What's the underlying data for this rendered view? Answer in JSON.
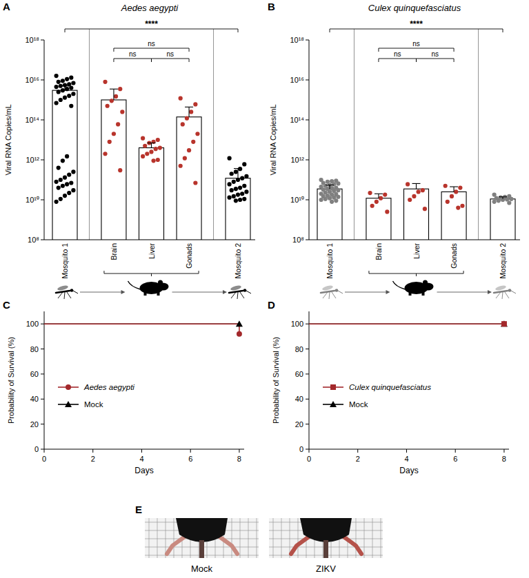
{
  "chart_data": [
    {
      "panel": "A",
      "type": "bar",
      "title": "Aedes aegypti",
      "y_label": "Viral RNA Copies/mL",
      "categories": [
        "Mosquito 1",
        "Brain",
        "Liver",
        "Gonads",
        "Mosquito 2"
      ],
      "values": [
        3000000000000000.0,
        1000000000000000.0,
        4000000000000.0,
        140000000000000.0,
        120000000000.0
      ],
      "errors": [
        2000000000000000.0,
        2500000000000000.0,
        3000000000000.0,
        300000000000000.0,
        250000000000.0
      ],
      "points": [
        [
          1.6e+16,
          1.3e+16,
          1.1e+16,
          9000000000000000.0,
          8000000000000000.0,
          7000000000000000.0,
          6000000000000000.0,
          5500000000000000.0,
          5000000000000000.0,
          4500000000000000.0,
          4000000000000000.0,
          3500000000000000.0,
          3000000000000000.0,
          2500000000000000.0,
          2000000000000000.0,
          1600000000000000.0,
          1300000000000000.0,
          1000000000000000.0,
          700000000000000.0,
          500000000000000.0,
          1500000000000.0,
          900000000000.0,
          400000000000.0,
          250000000000.0,
          180000000000.0,
          130000000000.0,
          100000000000.0,
          80000000000.0,
          70000000000.0,
          60000000000.0,
          50000000000.0,
          40000000000.0,
          30000000000.0,
          22000000000.0,
          16000000000.0,
          11000000000.0,
          8000000000.0
        ],
        [
          8000000000000000.0,
          3500000000000000.0,
          1500000000000000.0,
          900000000000000.0,
          500000000000000.0,
          250000000000000.0,
          60000000000000.0,
          20000000000000.0,
          8000000000000.0,
          2000000000000.0,
          300000000000.0
        ],
        [
          12000000000000.0,
          10000000000000.0,
          8000000000000.0,
          7000000000000.0,
          5000000000000.0,
          4000000000000.0,
          3500000000000.0,
          2500000000000.0,
          2000000000000.0,
          1500000000000.0,
          1000000000000.0,
          900000000000.0
        ],
        [
          1200000000000000.0,
          600000000000000.0,
          250000000000000.0,
          120000000000000.0,
          60000000000000.0,
          20000000000000.0,
          8000000000000.0,
          3000000000000.0,
          1200000000000.0,
          500000000000.0,
          70000000000.0
        ],
        [
          1200000000000.0,
          600000000000.0,
          350000000000.0,
          250000000000.0,
          200000000000.0,
          150000000000.0,
          120000000000.0,
          100000000000.0,
          80000000000.0,
          60000000000.0,
          50000000000.0,
          40000000000.0,
          35000000000.0,
          30000000000.0,
          25000000000.0,
          20000000000.0,
          18000000000.0,
          15000000000.0,
          13000000000.0,
          11000000000.0,
          10000000000.0,
          9000000000.0
        ]
      ],
      "colors": [
        "#000000",
        "#b8342c",
        "#b8342c",
        "#b8342c",
        "#000000"
      ],
      "log": "y",
      "ylim": [
        100000000.0,
        1e+18
      ],
      "yticks": [
        {
          "value": 100000000.0,
          "label": "10⁸"
        },
        {
          "value": 10000000000.0,
          "label": "10¹⁰"
        },
        {
          "value": 1000000000000.0,
          "label": "10¹²"
        },
        {
          "value": 100000000000000.0,
          "label": "10¹⁴"
        },
        {
          "value": 1e+16,
          "label": "10¹⁶"
        },
        {
          "value": 1e+18,
          "label": "10¹⁸"
        }
      ],
      "annotations": [
        {
          "groups": [
            0,
            4
          ],
          "label": "****"
        },
        {
          "groups": [
            1,
            3
          ],
          "label": "ns"
        },
        {
          "groups": [
            1,
            2
          ],
          "label": "ns"
        },
        {
          "groups": [
            2,
            3
          ],
          "label": "ns"
        }
      ]
    },
    {
      "panel": "B",
      "type": "bar",
      "title": "Culex quinquefasciatus",
      "y_label": "Viral RNA Copies/mL",
      "categories": [
        "Mosquito 1",
        "Brain",
        "Liver",
        "Gonads",
        "Mosquito 2"
      ],
      "values": [
        35000000000.0,
        12000000000.0,
        35000000000.0,
        25000000000.0,
        11000000000.0
      ],
      "errors": [
        20000000000.0,
        8000000000.0,
        30000000000.0,
        20000000000.0,
        3000000000.0
      ],
      "points": [
        [
          100000000000.0,
          90000000000.0,
          85000000000.0,
          80000000000.0,
          70000000000.0,
          65000000000.0,
          60000000000.0,
          55000000000.0,
          50000000000.0,
          45000000000.0,
          40000000000.0,
          38000000000.0,
          35000000000.0,
          32000000000.0,
          30000000000.0,
          28000000000.0,
          25000000000.0,
          23000000000.0,
          20000000000.0,
          19000000000.0,
          18000000000.0,
          16000000000.0,
          15000000000.0,
          14000000000.0,
          13000000000.0,
          12000000000.0,
          11000000000.0,
          10000000000.0,
          9000000000.0,
          8000000000.0
        ],
        [
          22000000000.0,
          18000000000.0,
          12000000000.0,
          8000000000.0,
          5000000000.0,
          2500000000.0
        ],
        [
          60000000000.0,
          30000000000.0,
          25000000000.0,
          15000000000.0,
          10000000000.0,
          3500000000.0
        ],
        [
          50000000000.0,
          40000000000.0,
          25000000000.0,
          15000000000.0,
          8000000000.0,
          5000000000.0,
          4000000000.0
        ],
        [
          18000000000.0,
          15000000000.0,
          14000000000.0,
          13000000000.0,
          12000000000.0,
          11000000000.0,
          10500000000.0,
          10000000000.0,
          9000000000.0,
          8000000000.0,
          7000000000.0
        ]
      ],
      "colors": [
        "#808080",
        "#b8342c",
        "#b8342c",
        "#b8342c",
        "#808080"
      ],
      "log": "y",
      "ylim": [
        100000000.0,
        1e+18
      ],
      "yticks": [
        {
          "value": 100000000.0,
          "label": "10⁸"
        },
        {
          "value": 10000000000.0,
          "label": "10¹⁰"
        },
        {
          "value": 1000000000000.0,
          "label": "10¹²"
        },
        {
          "value": 100000000000000.0,
          "label": "10¹⁴"
        },
        {
          "value": 1e+16,
          "label": "10¹⁶"
        },
        {
          "value": 1e+18,
          "label": "10¹⁸"
        }
      ],
      "annotations": [
        {
          "groups": [
            0,
            4
          ],
          "label": "****"
        },
        {
          "groups": [
            1,
            3
          ],
          "label": "ns"
        },
        {
          "groups": [
            1,
            2
          ],
          "label": "ns"
        },
        {
          "groups": [
            2,
            3
          ],
          "label": "ns"
        }
      ]
    },
    {
      "panel": "C",
      "type": "line",
      "x_label": "Days",
      "y_label": "Probability of Survival (%)",
      "xlim": [
        0,
        8.2
      ],
      "xticks": [
        0,
        2,
        4,
        6,
        8
      ],
      "ylim": [
        0,
        110
      ],
      "yticks": [
        0,
        20,
        40,
        60,
        80,
        100
      ],
      "legend": "left",
      "series": [
        {
          "name": "Aedes aegypti",
          "color": "#a3282b",
          "marker": "circle",
          "x": [
            0,
            8,
            8
          ],
          "values": [
            100,
            100,
            92
          ]
        },
        {
          "name": "Mock",
          "color": "#000000",
          "marker": "triangle",
          "x": [
            0,
            8
          ],
          "values": [
            100,
            100
          ]
        }
      ]
    },
    {
      "panel": "D",
      "type": "line",
      "x_label": "Days",
      "y_label": "Probability of Survival (%)",
      "xlim": [
        0,
        8.2
      ],
      "xticks": [
        0,
        2,
        4,
        6,
        8
      ],
      "ylim": [
        0,
        110
      ],
      "yticks": [
        0,
        20,
        40,
        60,
        80,
        100
      ],
      "legend": "left",
      "series": [
        {
          "name": "Culex quinquefasciatus",
          "color": "#a3282b",
          "marker": "square",
          "x": [
            0,
            8
          ],
          "values": [
            100,
            100
          ]
        },
        {
          "name": "Mock",
          "color": "#000000",
          "marker": "triangle",
          "x": [
            0,
            8
          ],
          "values": [
            100,
            100
          ]
        }
      ]
    }
  ],
  "panel_e": {
    "panel": "E",
    "labels": [
      "Mock",
      "ZIKV"
    ]
  }
}
